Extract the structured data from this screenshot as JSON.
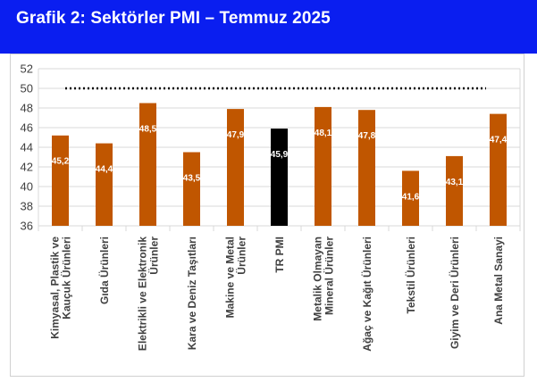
{
  "header": {
    "title": "Grafik 2: Sektörler PMI – Temmuz 2025"
  },
  "colors": {
    "banner": "#0a1ef0",
    "bar": "#c05600",
    "highlight_bar": "#000000",
    "grid": "#d9d9d9",
    "reference_line": "#000000"
  },
  "chart_data": {
    "type": "bar",
    "title": "",
    "xlabel": "",
    "ylabel": "",
    "ylim": [
      36,
      52
    ],
    "yticks": [
      36,
      38,
      40,
      42,
      44,
      46,
      48,
      50,
      52
    ],
    "grid": true,
    "reference_line": {
      "value": 50,
      "style": "dotted"
    },
    "categories": [
      "Kimyasal, Plastik ve Kauçuk Ürünleri",
      "Gıda Ürünleri",
      "Elektrikli ve Elektronik Ürünler",
      "Kara ve Deniz Taşıtları",
      "Makine ve Metal Ürünler",
      "TR PMI",
      "Metalik Olmayan Mineral Ürünler",
      "Ağaç ve Kağıt Ürünleri",
      "Tekstil Ürünleri",
      "Giyim ve Deri Ürünleri",
      "Ana Metal Sanayi"
    ],
    "category_label_lines": [
      [
        "Kimyasal, Plastik ve",
        "Kauçuk Ürünleri"
      ],
      [
        "Gıda Ürünleri"
      ],
      [
        "Elektrikli ve Elektronik",
        "Ürünler"
      ],
      [
        "Kara ve Deniz Taşıtları"
      ],
      [
        "Makine ve Metal",
        "Ürünler"
      ],
      [
        "TR PMI"
      ],
      [
        "Metalik Olmayan",
        "Mineral Ürünler"
      ],
      [
        "Ağaç ve Kağıt Ürünleri"
      ],
      [
        "Tekstil Ürünleri"
      ],
      [
        "Giyim ve Deri Ürünleri"
      ],
      [
        "Ana Metal Sanayi"
      ]
    ],
    "values": [
      45.2,
      44.4,
      48.5,
      43.5,
      47.9,
      45.9,
      48.1,
      47.8,
      41.6,
      43.1,
      47.4
    ],
    "data_labels": [
      "45,2",
      "44,4",
      "48,5",
      "43,5",
      "47,9",
      "45,9",
      "48,1",
      "47,8",
      "41,6",
      "43,1",
      "47,4"
    ],
    "highlight_category": "TR PMI"
  }
}
